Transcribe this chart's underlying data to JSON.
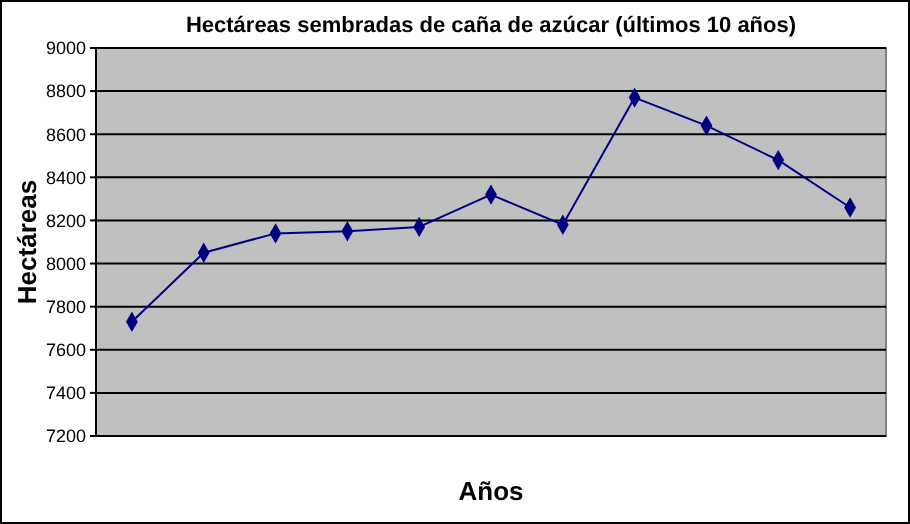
{
  "chart_data": {
    "type": "line",
    "title": "Hectáreas sembradas de caña de azúcar (últimos 10 años)",
    "xlabel": "Años",
    "ylabel": "Hectáreas",
    "categories": [
      null,
      null,
      null,
      null,
      null,
      null,
      null,
      null,
      null,
      null,
      null
    ],
    "series": [
      {
        "color": "#000080",
        "values": [
          7730,
          8050,
          8140,
          8150,
          8170,
          8320,
          8180,
          8770,
          8640,
          8480,
          8260
        ]
      }
    ],
    "ylim": [
      7200,
      9000
    ],
    "yticks": [
      7200,
      7400,
      7600,
      7800,
      8000,
      8200,
      8400,
      8600,
      8800,
      9000
    ],
    "grid": "y",
    "tick_labels": "y",
    "marker": "diamond"
  }
}
